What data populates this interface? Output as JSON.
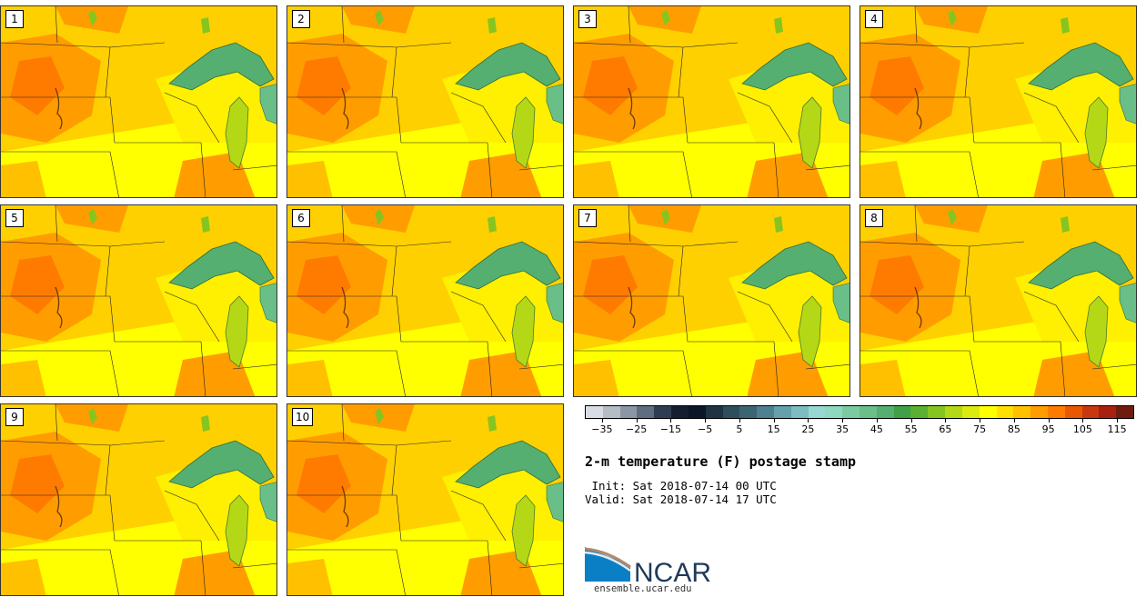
{
  "panels": [
    {
      "label": "1"
    },
    {
      "label": "2"
    },
    {
      "label": "3"
    },
    {
      "label": "4"
    },
    {
      "label": "5"
    },
    {
      "label": "6"
    },
    {
      "label": "7"
    },
    {
      "label": "8"
    },
    {
      "label": "9"
    },
    {
      "label": "10"
    }
  ],
  "colorbar": {
    "ticks": [
      "−35",
      "−25",
      "−15",
      "−5",
      "5",
      "15",
      "25",
      "35",
      "45",
      "55",
      "65",
      "75",
      "85",
      "95",
      "105",
      "115"
    ],
    "tick_values": [
      -35,
      -25,
      -15,
      -5,
      5,
      15,
      25,
      35,
      45,
      55,
      65,
      75,
      85,
      95,
      105,
      115
    ],
    "range": [
      -40,
      120
    ],
    "colors": [
      "#d8dde3",
      "#b4bcc4",
      "#8a96a4",
      "#5f6d80",
      "#2f3d52",
      "#141e30",
      "#0b1628",
      "#1e3344",
      "#2f4e5c",
      "#3c6574",
      "#4d8090",
      "#65a0ac",
      "#7dbcc0",
      "#97d8d0",
      "#8fd8c0",
      "#7ccaa0",
      "#6abf88",
      "#55af70",
      "#40a048",
      "#5ab030",
      "#86c520",
      "#b4d816",
      "#dcea10",
      "#ffff00",
      "#ffe000",
      "#ffc000",
      "#ff9d00",
      "#ff7b00",
      "#e85800",
      "#c83810",
      "#a82010",
      "#6e1c10"
    ]
  },
  "title": "2-m temperature (F) postage stamp",
  "init_line": " Init: Sat 2018-07-14 00 UTC",
  "valid_line": "Valid: Sat 2018-07-14 17 UTC",
  "logo": {
    "text": "NCAR",
    "url": "ensemble.ucar.edu"
  }
}
